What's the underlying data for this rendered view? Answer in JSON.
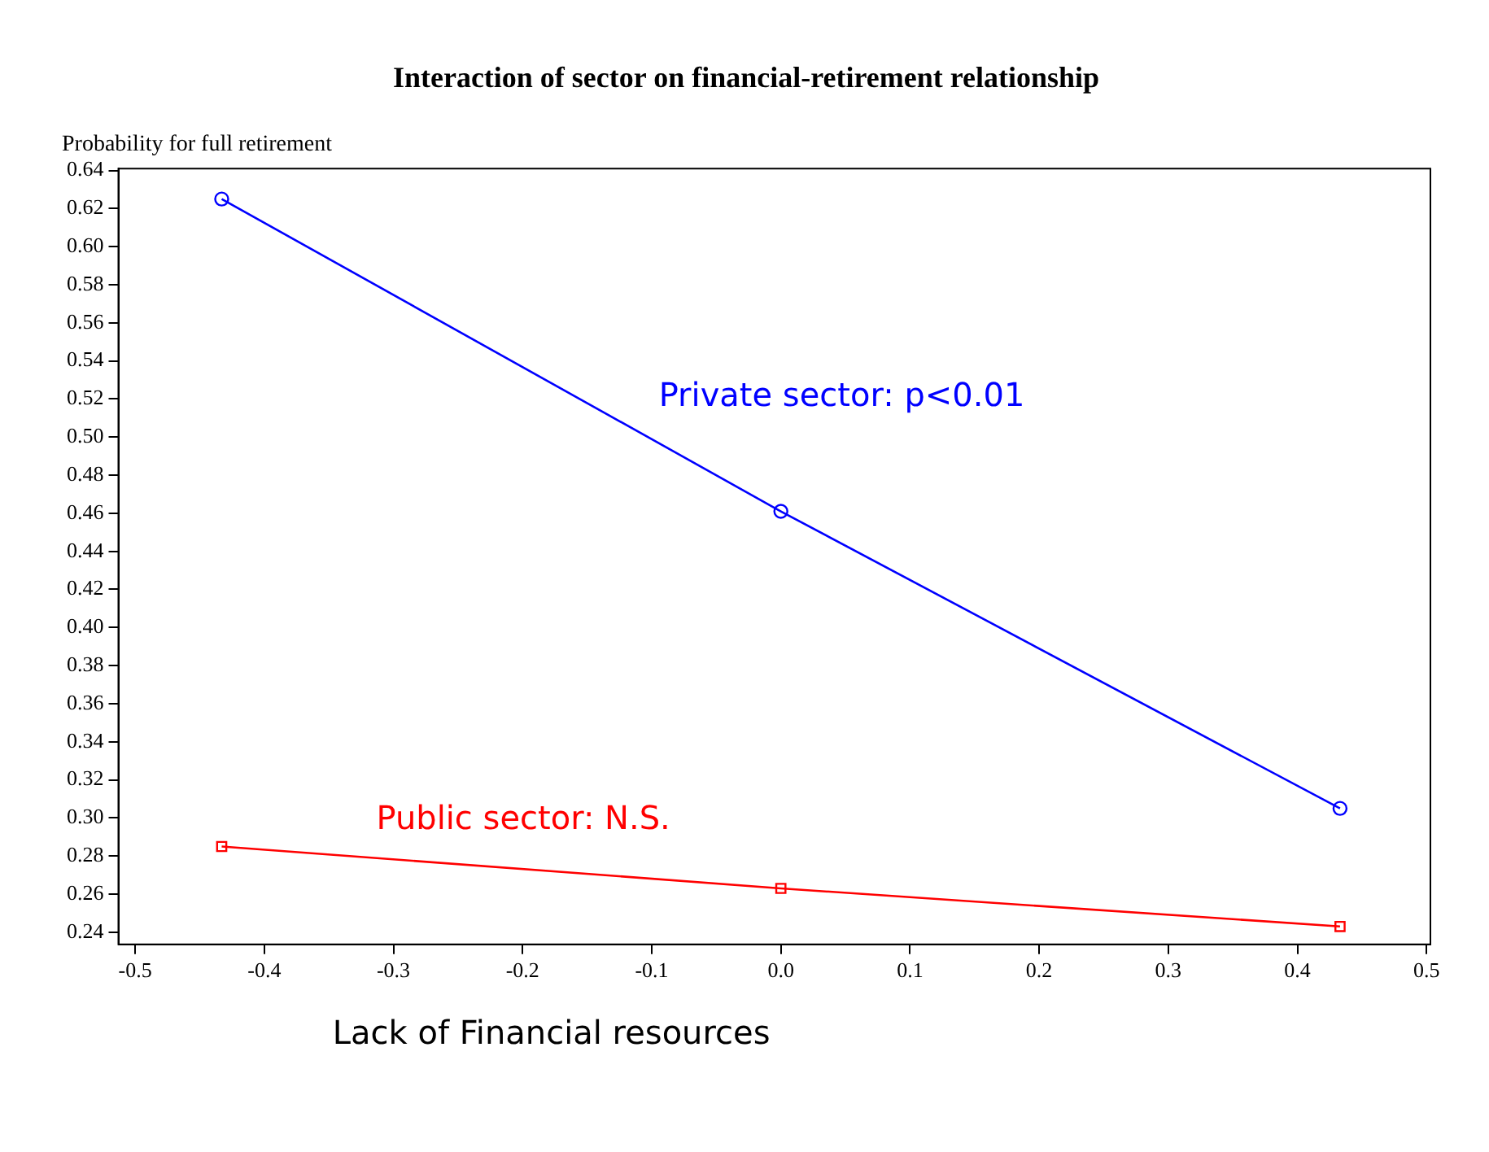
{
  "chart_data": {
    "type": "line",
    "title": "Interaction of sector on financial-retirement relationship",
    "xlabel": "Lack of Financial resources",
    "ylabel": "Probability for full retirement",
    "series": [
      {
        "name": "Private sector: p<0.01",
        "color": "#0000ff",
        "marker": "circle",
        "x": [
          -0.433,
          0,
          0.433
        ],
        "values": [
          0.625,
          0.461,
          0.305
        ]
      },
      {
        "name": "Public sector: N.S.",
        "color": "#ff0000",
        "marker": "square",
        "x": [
          -0.433,
          0,
          0.433
        ],
        "values": [
          0.285,
          0.263,
          0.243
        ]
      }
    ],
    "xlim": [
      -0.513,
      0.503
    ],
    "xticks": [
      {
        "value": -0.5,
        "label": "-0.5"
      },
      -0.4,
      -0.3,
      -0.2,
      -0.1,
      {
        "value": 0,
        "label": "0.0"
      },
      0.1,
      0.2,
      0.3,
      0.4,
      0.5
    ],
    "ylim": [
      0.2336,
      0.641
    ],
    "yticks": [
      0.24,
      0.26,
      0.28,
      {
        "value": 0.3,
        "label": "0.30"
      },
      0.32,
      0.34,
      0.36,
      0.38,
      {
        "value": 0.4,
        "label": "0.40"
      },
      0.42,
      0.44,
      0.46,
      0.48,
      {
        "value": 0.5,
        "label": "0.50"
      },
      0.52,
      0.54,
      0.56,
      0.58,
      {
        "value": 0.6,
        "label": "0.60"
      },
      0.62,
      0.64
    ],
    "grid": false,
    "legend": false,
    "line_style": "solid"
  }
}
